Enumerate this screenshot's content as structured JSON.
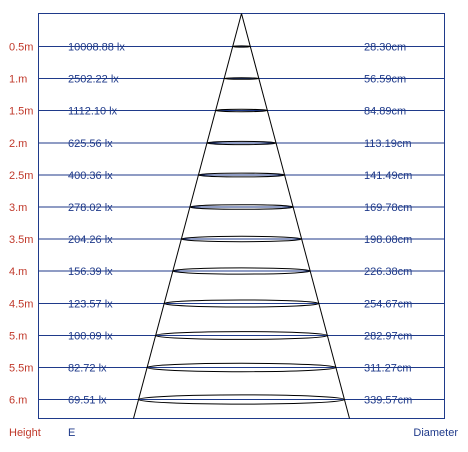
{
  "rows": [
    {
      "height": "0.5m",
      "lux": "10008.88 lx",
      "diameter": "28.30cm"
    },
    {
      "height": "1.m",
      "lux": "2502.22 lx",
      "diameter": "56.59cm"
    },
    {
      "height": "1.5m",
      "lux": "1112.10 lx",
      "diameter": "84.89cm"
    },
    {
      "height": "2.m",
      "lux": "625.56 lx",
      "diameter": "113.19cm"
    },
    {
      "height": "2.5m",
      "lux": "400.36 lx",
      "diameter": "141.49cm"
    },
    {
      "height": "3.m",
      "lux": "278.02 lx",
      "diameter": "169.78cm"
    },
    {
      "height": "3.5m",
      "lux": "204.26 lx",
      "diameter": "198.08cm"
    },
    {
      "height": "4.m",
      "lux": "156.39 lx",
      "diameter": "226.38cm"
    },
    {
      "height": "4.5m",
      "lux": "123.57 lx",
      "diameter": "254.67cm"
    },
    {
      "height": "5.m",
      "lux": "100.09 lx",
      "diameter": "282.97cm"
    },
    {
      "height": "5.5m",
      "lux": "82.72 lx",
      "diameter": "311.27cm"
    },
    {
      "height": "6.m",
      "lux": "69.51 lx",
      "diameter": "339.57cm"
    }
  ],
  "footer": {
    "height_label": "Height",
    "e_label": "E",
    "diameter_label": "Diameter"
  },
  "colors": {
    "height_text": "#c0392b",
    "value_text": "#1f3a8a",
    "lines": "#1f3a8a",
    "cone": "#000000"
  }
}
